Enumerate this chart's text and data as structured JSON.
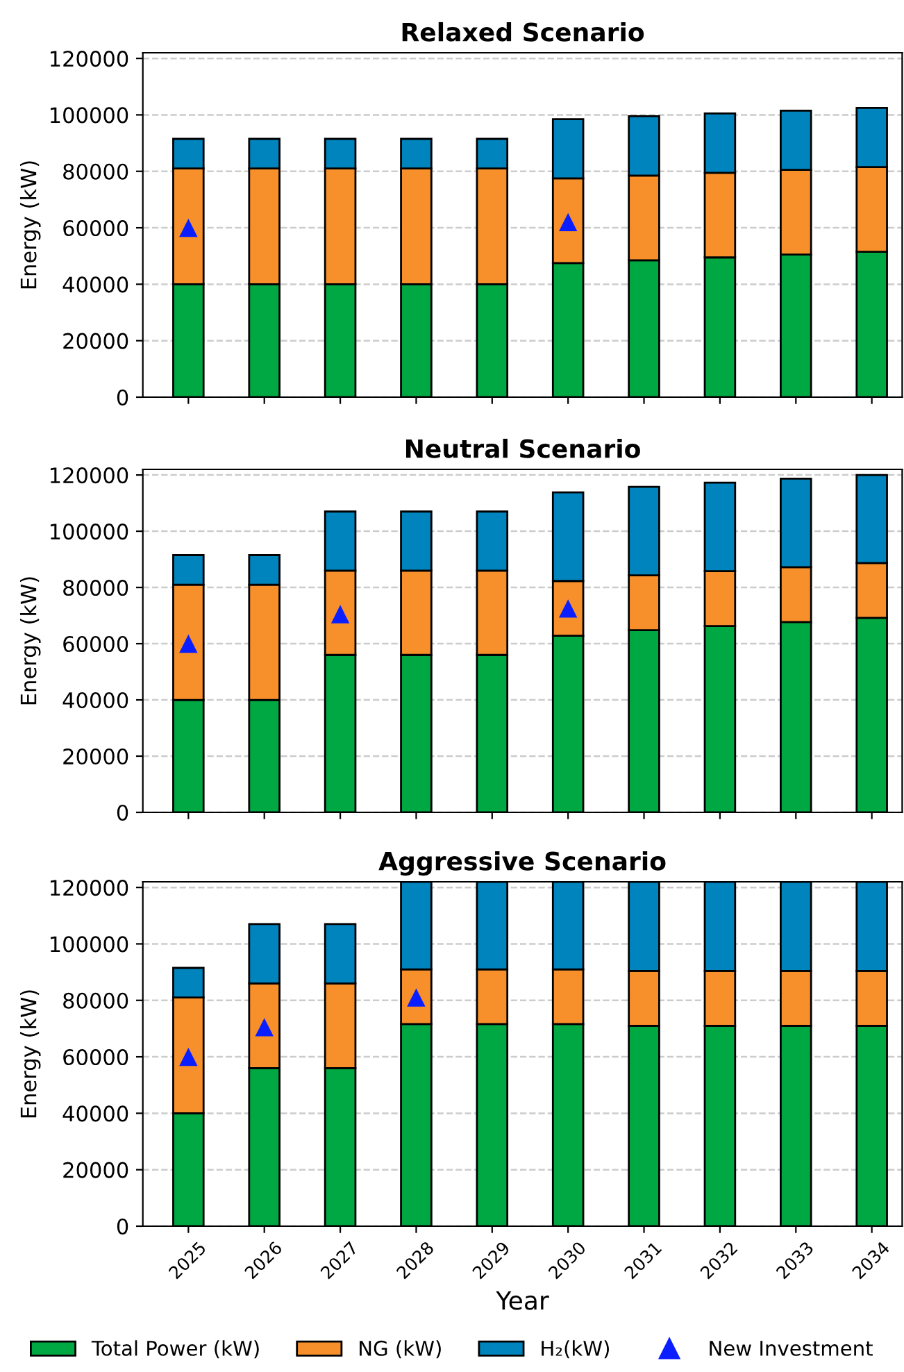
{
  "chart_data": [
    {
      "type": "bar",
      "title": "Relaxed Scenario",
      "ylabel": "Energy (kW)",
      "stacked": true,
      "grid": "y",
      "tick_labels": "y",
      "legend": "bottom",
      "ylim": [
        0,
        122000
      ],
      "yticks": [
        0,
        20000,
        40000,
        60000,
        80000,
        100000,
        120000
      ],
      "categories": [
        "2025",
        "2026",
        "2027",
        "2028",
        "2029",
        "2030",
        "2031",
        "2032",
        "2033",
        "2034"
      ],
      "series": [
        {
          "name": "Total Power (kW)",
          "color": "#00a843",
          "values": [
            40000,
            40000,
            40000,
            40000,
            40000,
            47500,
            48500,
            49500,
            50500,
            51500
          ]
        },
        {
          "name": "NG (kW)",
          "color": "#f7902a",
          "values": [
            41000,
            41000,
            41000,
            41000,
            41000,
            30000,
            30000,
            30000,
            30000,
            30000
          ]
        },
        {
          "name": "H₂(kW)",
          "color": "#0084bd",
          "values": [
            10500,
            10500,
            10500,
            10500,
            10500,
            21000,
            21000,
            21000,
            21000,
            21000
          ]
        },
        {
          "name": "New Investment",
          "type": "scatter",
          "marker": "triangle",
          "color": "#0a1eff",
          "values": [
            60000,
            null,
            null,
            null,
            null,
            62000,
            null,
            null,
            null,
            null
          ]
        }
      ]
    },
    {
      "type": "bar",
      "title": "Neutral Scenario",
      "ylabel": "Energy (kW)",
      "stacked": true,
      "grid": "y",
      "tick_labels": "y",
      "ylim": [
        0,
        122000
      ],
      "yticks": [
        0,
        20000,
        40000,
        60000,
        80000,
        100000,
        120000
      ],
      "categories": [
        "2025",
        "2026",
        "2027",
        "2028",
        "2029",
        "2030",
        "2031",
        "2032",
        "2033",
        "2034"
      ],
      "series": [
        {
          "color": "#00a843",
          "values": [
            40000,
            40000,
            56000,
            56000,
            56000,
            62800,
            64800,
            66300,
            67700,
            69200
          ]
        },
        {
          "color": "#f7902a",
          "values": [
            41000,
            41000,
            30000,
            30000,
            30000,
            19500,
            19500,
            19500,
            19500,
            19500
          ]
        },
        {
          "color": "#0084bd",
          "values": [
            10500,
            10500,
            21000,
            21000,
            21000,
            31500,
            31500,
            31500,
            31500,
            31300
          ]
        },
        {
          "type": "scatter",
          "marker": "triangle",
          "color": "#0a1eff",
          "values": [
            60000,
            null,
            70500,
            null,
            null,
            72500,
            null,
            null,
            null,
            null
          ]
        }
      ]
    },
    {
      "type": "bar",
      "title": "Aggressive Scenario",
      "ylabel": "Energy (kW)",
      "xlabel": "Year",
      "stacked": true,
      "grid": "y",
      "ylim": [
        0,
        122000
      ],
      "yticks": [
        0,
        20000,
        40000,
        60000,
        80000,
        100000,
        120000
      ],
      "categories": [
        "2025",
        "2026",
        "2027",
        "2028",
        "2029",
        "2030",
        "2031",
        "2032",
        "2033",
        "2034"
      ],
      "series": [
        {
          "color": "#00a843",
          "values": [
            40000,
            56000,
            56000,
            71600,
            71600,
            71600,
            71000,
            71000,
            71000,
            71000
          ]
        },
        {
          "color": "#f7902a",
          "values": [
            41000,
            30000,
            30000,
            19400,
            19400,
            19400,
            19400,
            19400,
            19400,
            19400
          ]
        },
        {
          "color": "#0084bd",
          "values": [
            10500,
            21000,
            21000,
            31000,
            31000,
            31000,
            31600,
            31600,
            31600,
            31600
          ]
        },
        {
          "type": "scatter",
          "marker": "triangle",
          "color": "#0a1eff",
          "values": [
            60000,
            70500,
            null,
            81000,
            null,
            null,
            null,
            null,
            null,
            null
          ]
        }
      ]
    }
  ]
}
